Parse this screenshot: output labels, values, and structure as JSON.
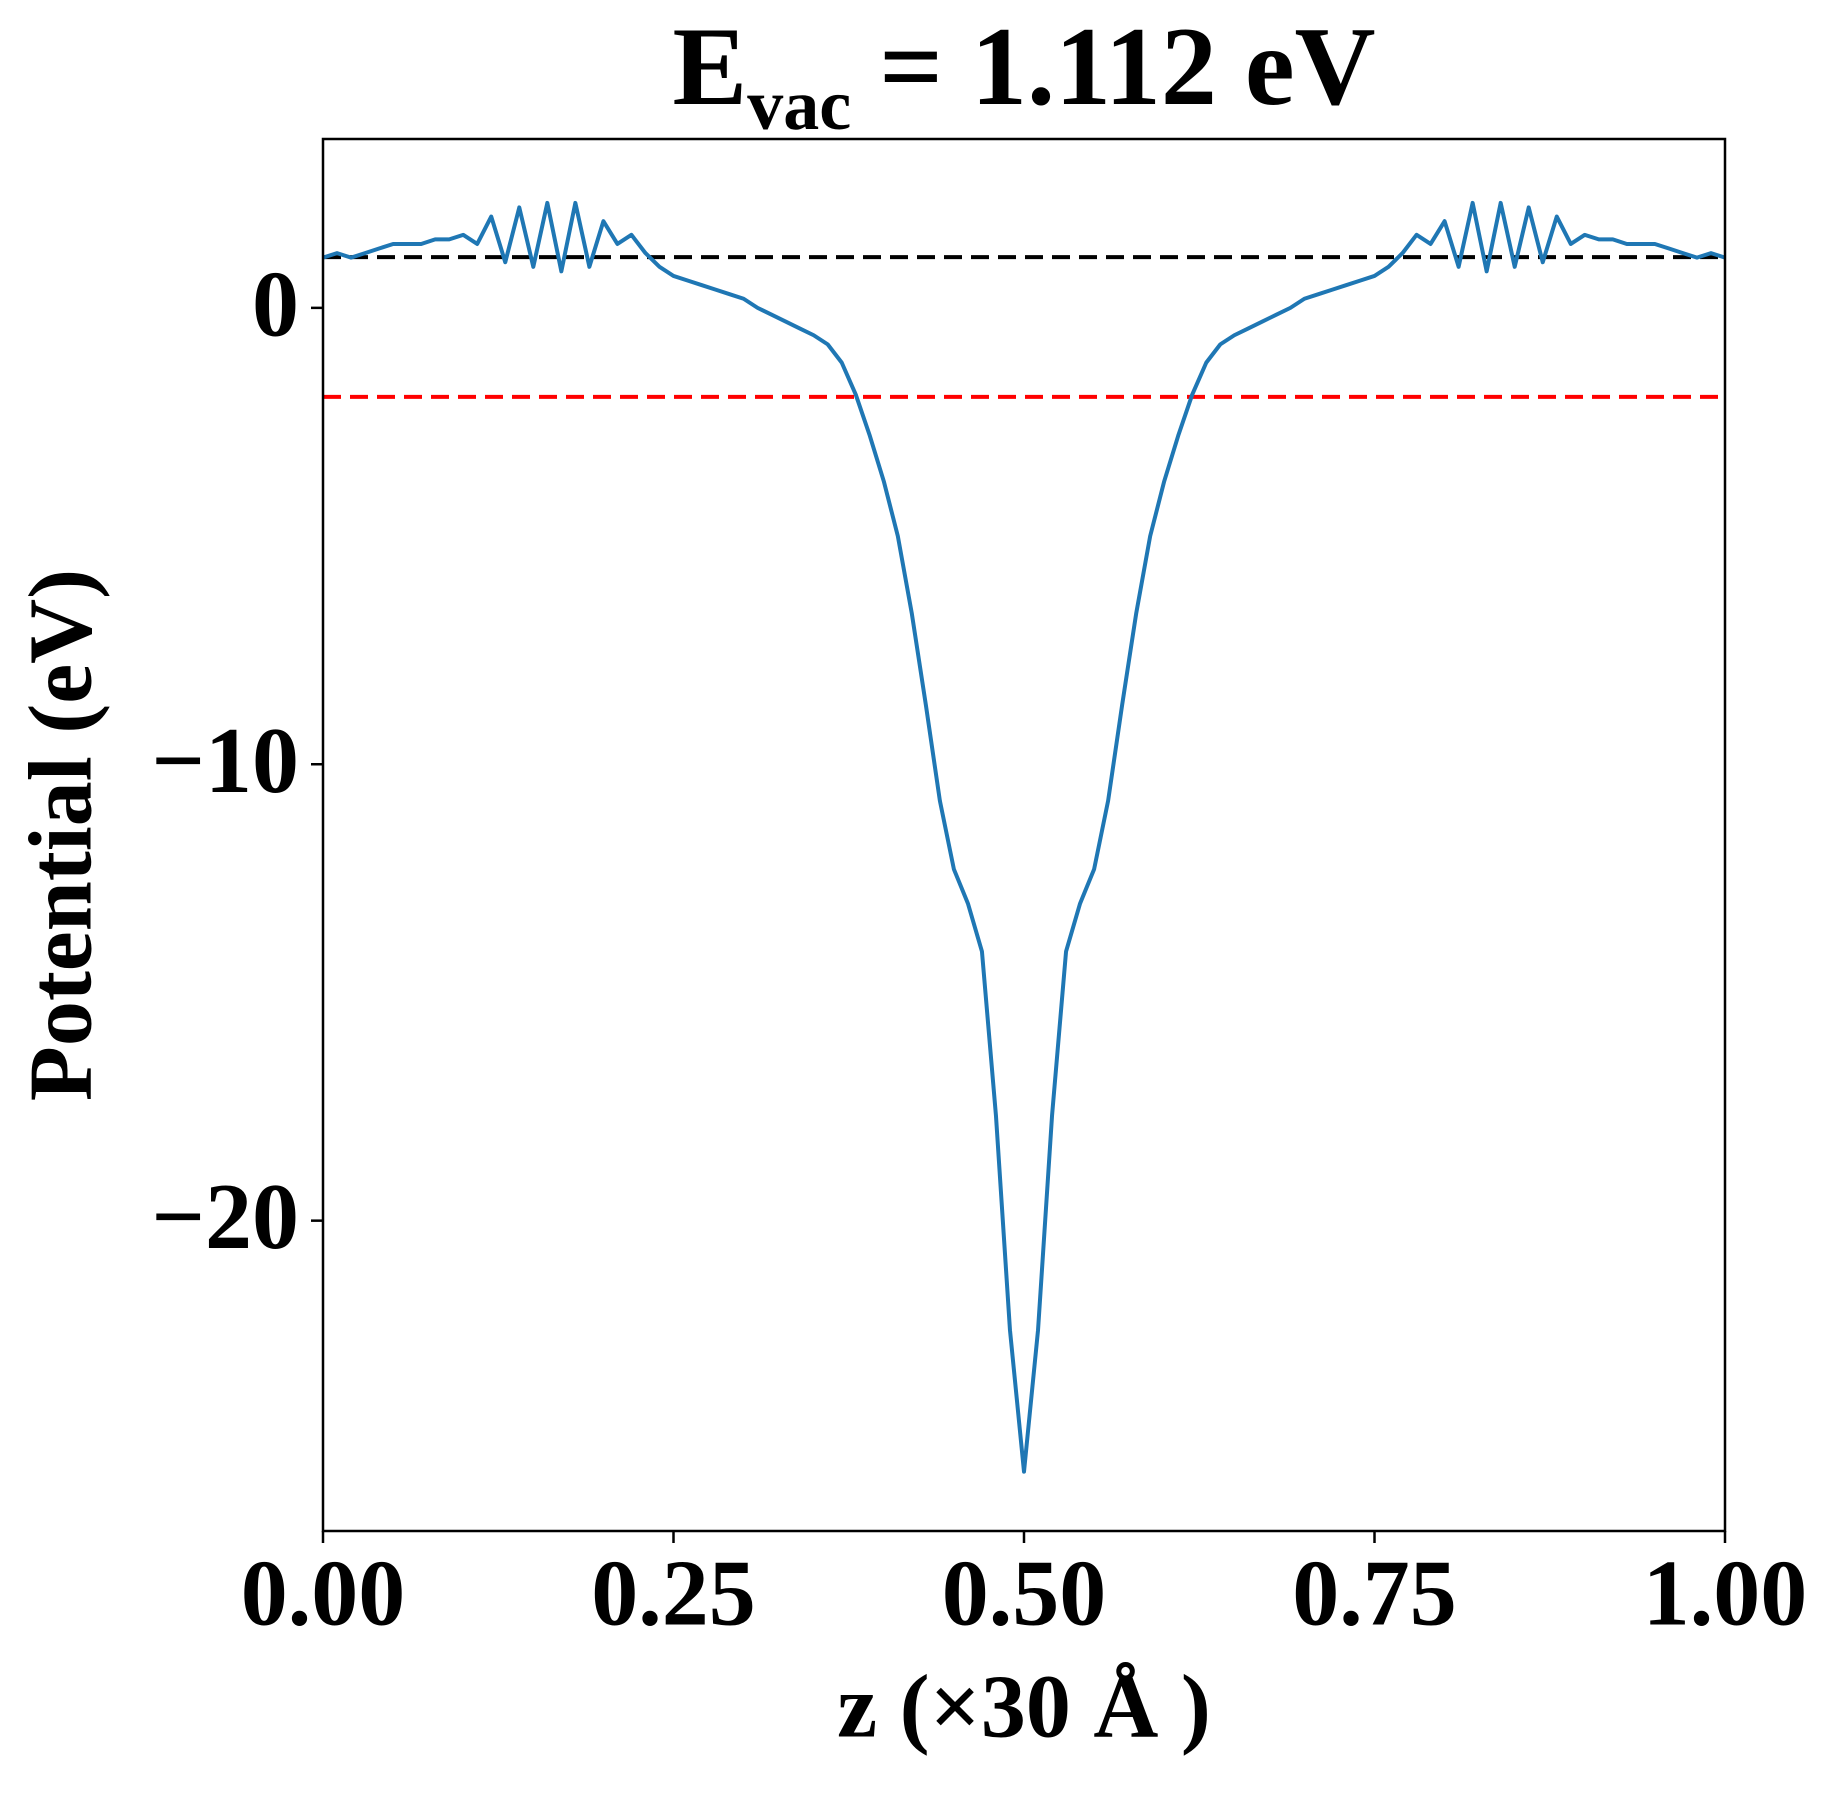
{
  "chart_data": {
    "type": "line",
    "title": {
      "main": "E",
      "subscript": "vac",
      "rest": " = 1.112 eV"
    },
    "x_label": "z (×30 Å )",
    "y_label": "Potential (eV)",
    "xlim": [
      0,
      1
    ],
    "ylim": [
      -26.8,
      3.7
    ],
    "xticks": [
      {
        "value": 0,
        "label": "0.00"
      },
      {
        "value": 0.25,
        "label": "0.25"
      },
      {
        "value": 0.5,
        "label": "0.50"
      },
      {
        "value": 0.75,
        "label": "0.75"
      },
      {
        "value": 1,
        "label": "1.00"
      }
    ],
    "yticks": [
      {
        "value": 0,
        "label": "0"
      },
      {
        "value": -10,
        "label": "−10"
      },
      {
        "value": -20,
        "label": "−20"
      }
    ],
    "grid": false,
    "reference_lines": [
      {
        "value": 1.112,
        "color": "#000000"
      },
      {
        "value": -1.95,
        "color": "#ff0000"
      }
    ],
    "x": [
      0,
      0.01,
      0.02,
      0.03,
      0.04,
      0.05,
      0.06,
      0.07,
      0.08,
      0.09,
      0.1,
      0.11,
      0.12,
      0.13,
      0.14,
      0.15,
      0.16,
      0.17,
      0.18,
      0.19,
      0.2,
      0.21,
      0.22,
      0.23,
      0.24,
      0.25,
      0.26,
      0.27,
      0.28,
      0.29,
      0.3,
      0.31,
      0.32,
      0.33,
      0.34,
      0.35,
      0.36,
      0.37,
      0.38,
      0.39,
      0.4,
      0.41,
      0.42,
      0.43,
      0.44,
      0.45,
      0.46,
      0.47,
      0.48,
      0.49,
      0.5,
      0.51,
      0.52,
      0.53,
      0.54,
      0.55,
      0.56,
      0.57,
      0.58,
      0.59,
      0.6,
      0.61,
      0.62,
      0.63,
      0.64,
      0.65,
      0.66,
      0.67,
      0.68,
      0.69,
      0.7,
      0.71,
      0.72,
      0.73,
      0.74,
      0.75,
      0.76,
      0.77,
      0.78,
      0.79,
      0.8,
      0.81,
      0.82,
      0.83,
      0.84,
      0.85,
      0.86,
      0.87,
      0.88,
      0.89,
      0.9,
      0.91,
      0.92,
      0.93,
      0.94,
      0.95,
      0.96,
      0.97,
      0.98,
      0.99,
      1
    ],
    "series": [
      {
        "color": "#1f77b4",
        "values": [
          1.1,
          1.2,
          1.1,
          1.2,
          1.3,
          1.4,
          1.4,
          1.4,
          1.5,
          1.5,
          1.6,
          1.4,
          2.0,
          1.0,
          2.2,
          0.9,
          2.3,
          0.8,
          2.3,
          0.9,
          1.9,
          1.4,
          1.6,
          1.2,
          0.9,
          0.7,
          0.6,
          0.5,
          0.4,
          0.3,
          0.2,
          0.0,
          -0.15,
          -0.3,
          -0.45,
          -0.6,
          -0.8,
          -1.2,
          -1.9,
          -2.8,
          -3.8,
          -5.0,
          -6.7,
          -8.7,
          -10.8,
          -12.3,
          -13.05,
          -14.1,
          -17.7,
          -22.4,
          -25.5,
          -22.4,
          -17.7,
          -14.1,
          -13.05,
          -12.3,
          -10.8,
          -8.7,
          -6.7,
          -5.0,
          -3.8,
          -2.8,
          -1.9,
          -1.2,
          -0.8,
          -0.6,
          -0.45,
          -0.3,
          -0.15,
          0.0,
          0.2,
          0.3,
          0.4,
          0.5,
          0.6,
          0.7,
          0.9,
          1.2,
          1.6,
          1.4,
          1.9,
          0.9,
          2.3,
          0.8,
          2.3,
          0.9,
          2.2,
          1.0,
          2.0,
          1.4,
          1.6,
          1.5,
          1.5,
          1.4,
          1.4,
          1.4,
          1.3,
          1.2,
          1.1,
          1.2,
          1.1
        ]
      }
    ]
  }
}
